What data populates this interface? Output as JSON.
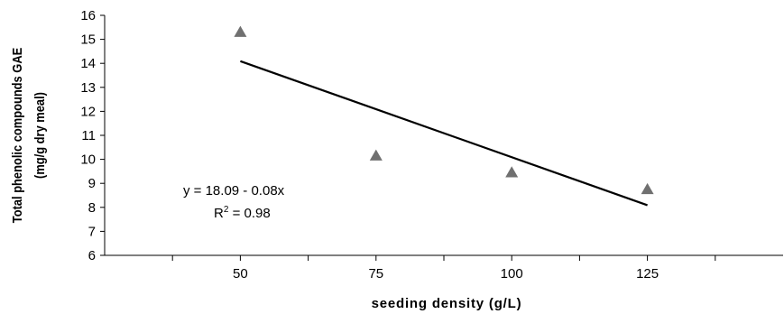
{
  "chart_data": {
    "type": "scatter",
    "xlabel": "seeding density (g/L)",
    "ylabel_line1": "Total phenolic compounds GAE",
    "ylabel_line2": "(mg/g dry meal)",
    "x_ticks": [
      50,
      75,
      100,
      125
    ],
    "xlim": [
      25,
      150
    ],
    "ylim": [
      6,
      16
    ],
    "y_ticks": [
      6,
      7,
      8,
      9,
      10,
      11,
      12,
      13,
      14,
      15,
      16
    ],
    "grid": false,
    "points": [
      {
        "x": 50,
        "y": 15.3
      },
      {
        "x": 75,
        "y": 10.15
      },
      {
        "x": 100,
        "y": 9.45
      },
      {
        "x": 125,
        "y": 8.75
      }
    ],
    "trendline": {
      "intercept": 18.09,
      "slope": -0.08,
      "x_start": 50,
      "x_end": 125
    },
    "equation_text": "y = 18.09 - 0.08x",
    "r2_prefix": "R",
    "r2_sup": "2",
    "r2_suffix": " = 0.98",
    "marker": "triangle",
    "marker_color": "#707070",
    "line_color": "#000000"
  }
}
